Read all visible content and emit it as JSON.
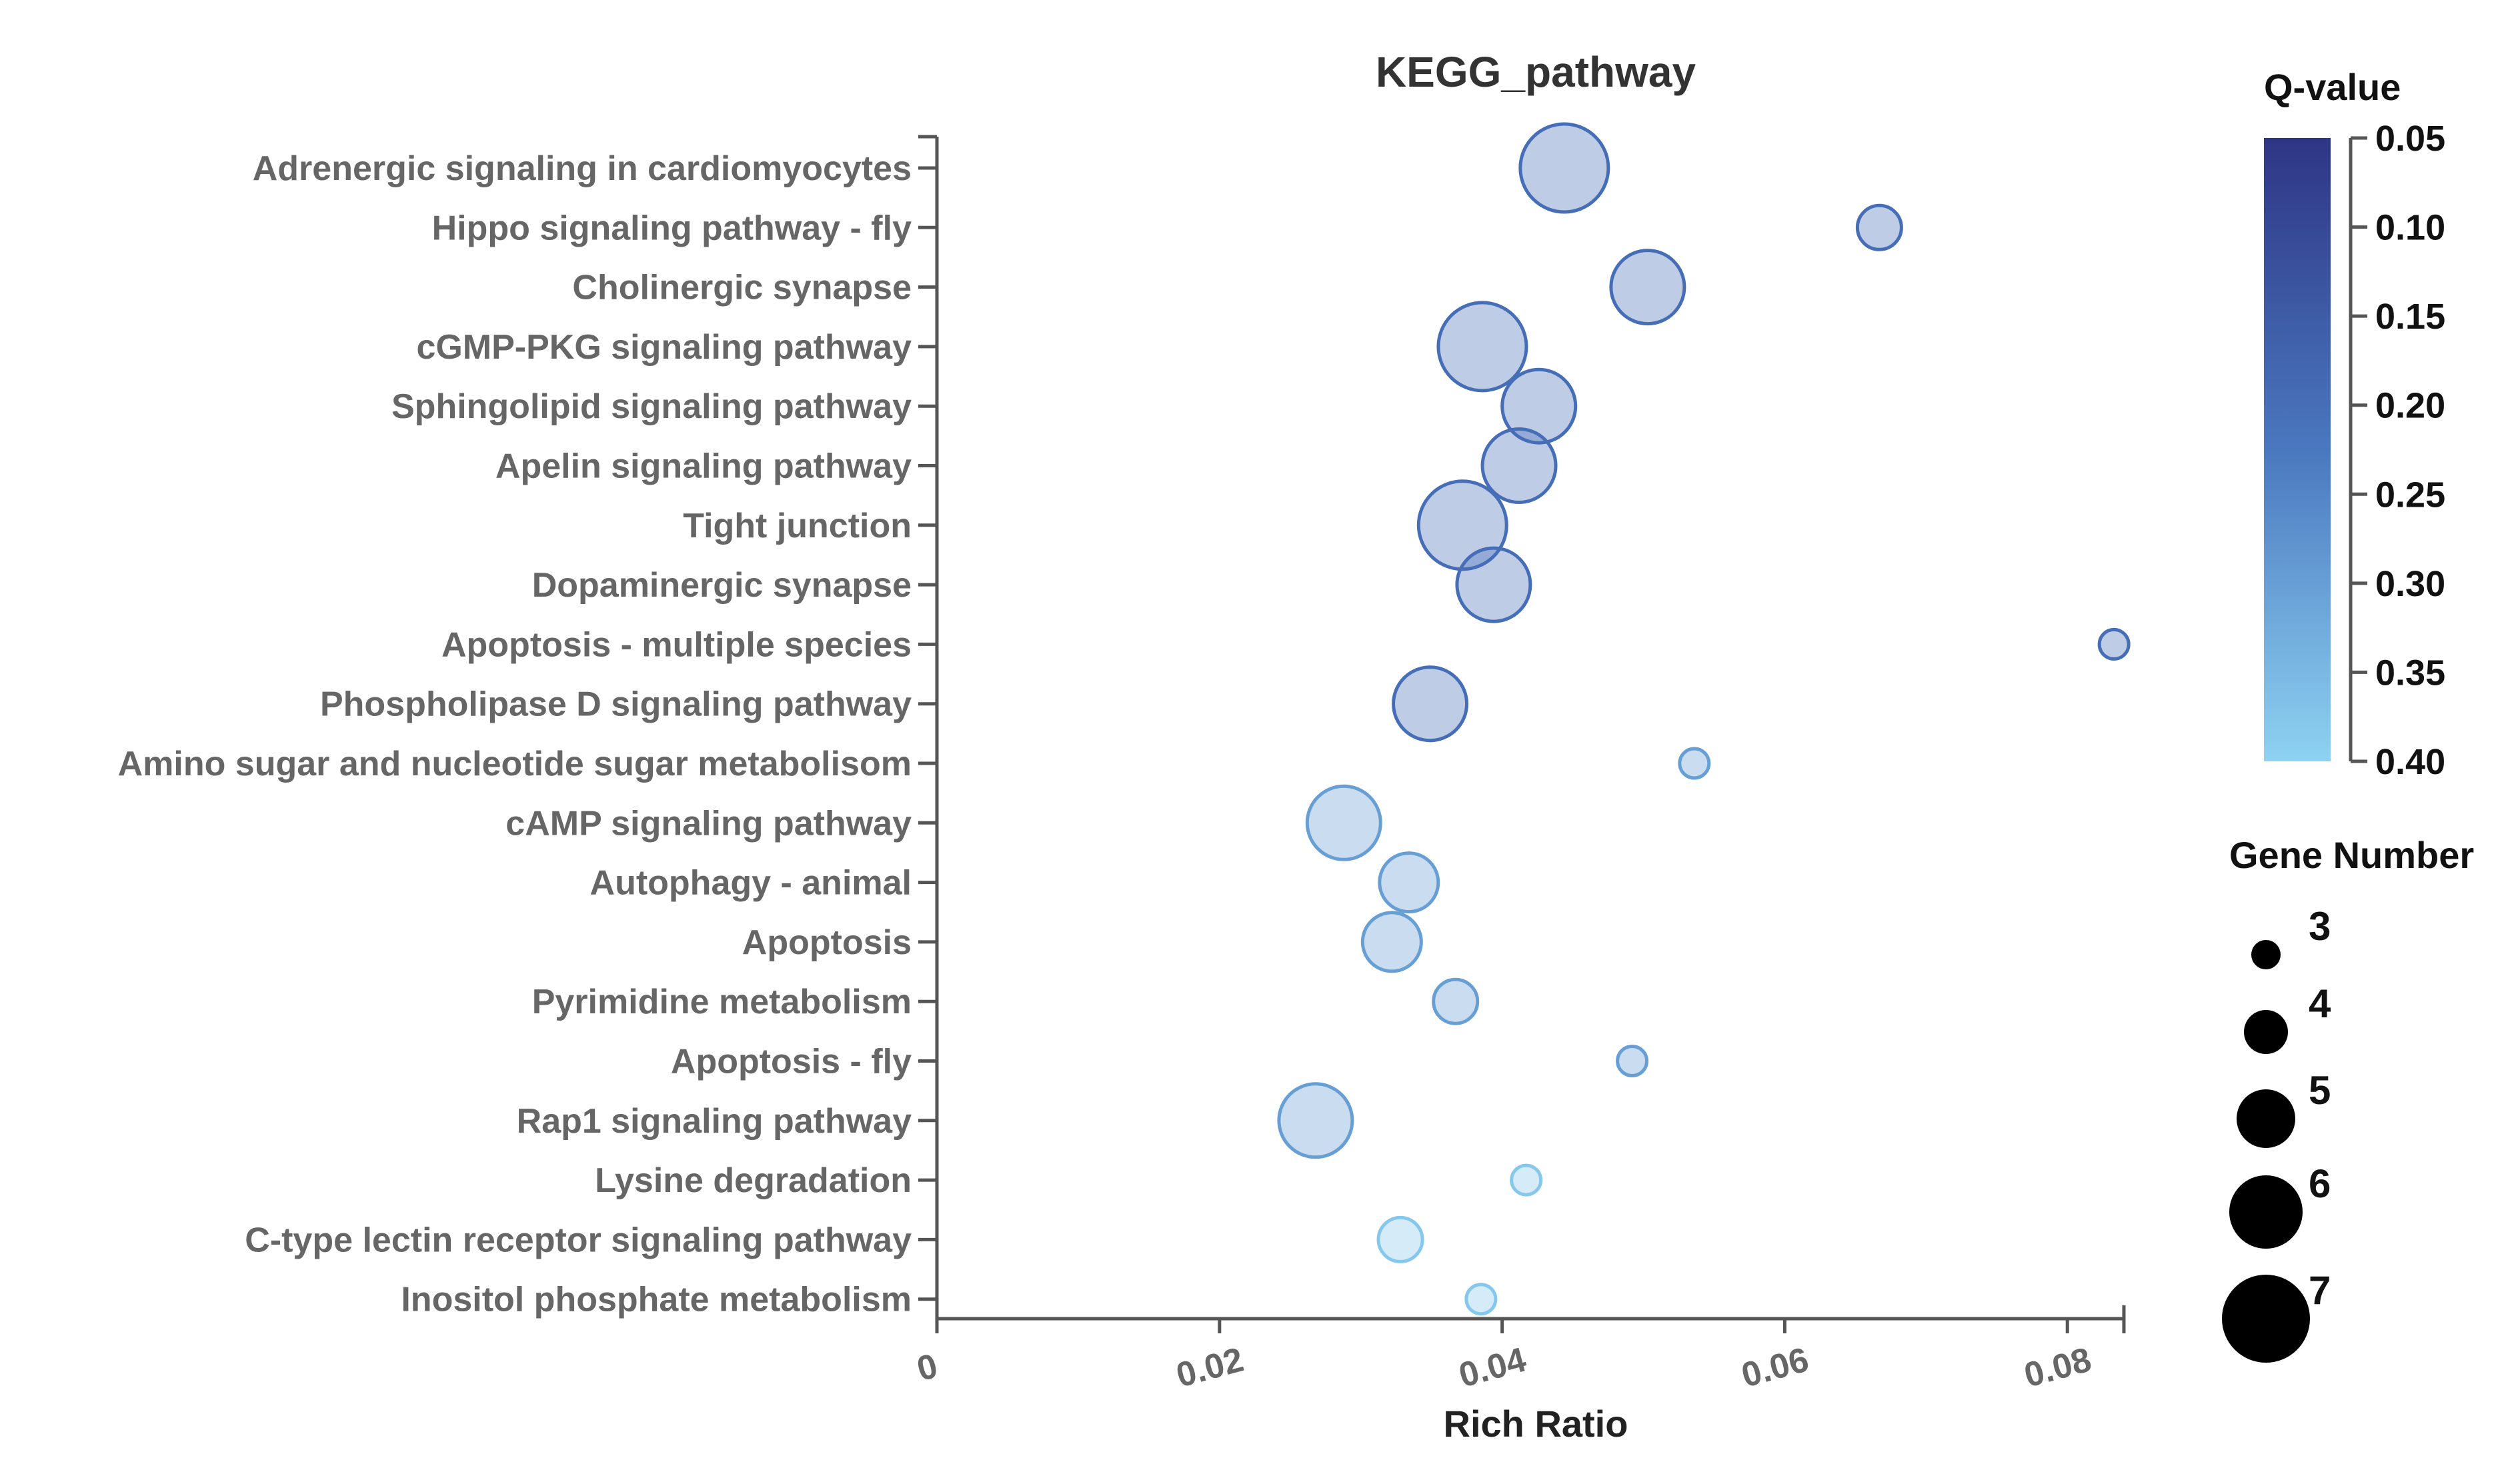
{
  "chart_data": {
    "type": "scatter",
    "title": "KEGG_pathway",
    "xlabel": "Rich Ratio",
    "ylabel": "",
    "xlim": [
      0,
      0.084
    ],
    "xticks": [
      {
        "value": 0,
        "label": "0"
      },
      {
        "value": 0.02,
        "label": "0.02"
      },
      {
        "value": 0.04,
        "label": "0.04"
      },
      {
        "value": 0.06,
        "label": "0.06"
      },
      {
        "value": 0.08,
        "label": "0.08"
      }
    ],
    "colorbar": {
      "title": "Q-value",
      "range": [
        0.05,
        0.4
      ],
      "color_low": "#2e3585",
      "color_high": "#8ed2f2",
      "ticks": [
        {
          "value": 0.05,
          "label": "0.05"
        },
        {
          "value": 0.1,
          "label": "0.10"
        },
        {
          "value": 0.15,
          "label": "0.15"
        },
        {
          "value": 0.2,
          "label": "0.20"
        },
        {
          "value": 0.25,
          "label": "0.25"
        },
        {
          "value": 0.3,
          "label": "0.30"
        },
        {
          "value": 0.35,
          "label": "0.35"
        },
        {
          "value": 0.4,
          "label": "0.40"
        }
      ]
    },
    "size_legend": {
      "title": "Gene Number",
      "values": [
        3,
        4,
        5,
        6,
        7
      ],
      "labels": [
        "3",
        "4",
        "5",
        "6",
        "7"
      ]
    },
    "points": [
      {
        "pathway": "Adrenergic signaling in cardiomyocytes",
        "rich_ratio": 0.0444,
        "gene_number": 7,
        "q_value": 0.2
      },
      {
        "pathway": "Hippo signaling pathway - fly",
        "rich_ratio": 0.0667,
        "gene_number": 4,
        "q_value": 0.2
      },
      {
        "pathway": "Cholinergic synapse",
        "rich_ratio": 0.0503,
        "gene_number": 6,
        "q_value": 0.2
      },
      {
        "pathway": "cGMP-PKG signaling pathway",
        "rich_ratio": 0.0386,
        "gene_number": 7,
        "q_value": 0.2
      },
      {
        "pathway": "Sphingolipid signaling pathway",
        "rich_ratio": 0.0426,
        "gene_number": 6,
        "q_value": 0.2
      },
      {
        "pathway": "Apelin signaling pathway",
        "rich_ratio": 0.0412,
        "gene_number": 6,
        "q_value": 0.2
      },
      {
        "pathway": "Tight junction",
        "rich_ratio": 0.0372,
        "gene_number": 7,
        "q_value": 0.2
      },
      {
        "pathway": "Dopaminergic synapse",
        "rich_ratio": 0.0394,
        "gene_number": 6,
        "q_value": 0.2
      },
      {
        "pathway": "Apoptosis - multiple species",
        "rich_ratio": 0.0833,
        "gene_number": 3,
        "q_value": 0.2
      },
      {
        "pathway": "Phospholipase D signaling pathway",
        "rich_ratio": 0.0349,
        "gene_number": 6,
        "q_value": 0.2
      },
      {
        "pathway": "Amino sugar and nucleotide sugar metabolisom",
        "rich_ratio": 0.0536,
        "gene_number": 3,
        "q_value": 0.3
      },
      {
        "pathway": "cAMP signaling pathway",
        "rich_ratio": 0.0288,
        "gene_number": 6,
        "q_value": 0.3
      },
      {
        "pathway": "Autophagy - animal",
        "rich_ratio": 0.0334,
        "gene_number": 5,
        "q_value": 0.3
      },
      {
        "pathway": "Apoptosis",
        "rich_ratio": 0.0322,
        "gene_number": 5,
        "q_value": 0.3
      },
      {
        "pathway": "Pyrimidine metabolism",
        "rich_ratio": 0.0367,
        "gene_number": 4,
        "q_value": 0.3
      },
      {
        "pathway": "Apoptosis - fly",
        "rich_ratio": 0.0492,
        "gene_number": 3,
        "q_value": 0.3
      },
      {
        "pathway": "Rap1 signaling pathway",
        "rich_ratio": 0.0268,
        "gene_number": 6,
        "q_value": 0.3
      },
      {
        "pathway": "Lysine degradation",
        "rich_ratio": 0.0417,
        "gene_number": 3,
        "q_value": 0.38
      },
      {
        "pathway": "C-type lectin receptor signaling pathway",
        "rich_ratio": 0.0328,
        "gene_number": 4,
        "q_value": 0.38
      },
      {
        "pathway": "Inositol phosphate metabolism",
        "rich_ratio": 0.0385,
        "gene_number": 3,
        "q_value": 0.38
      }
    ]
  }
}
